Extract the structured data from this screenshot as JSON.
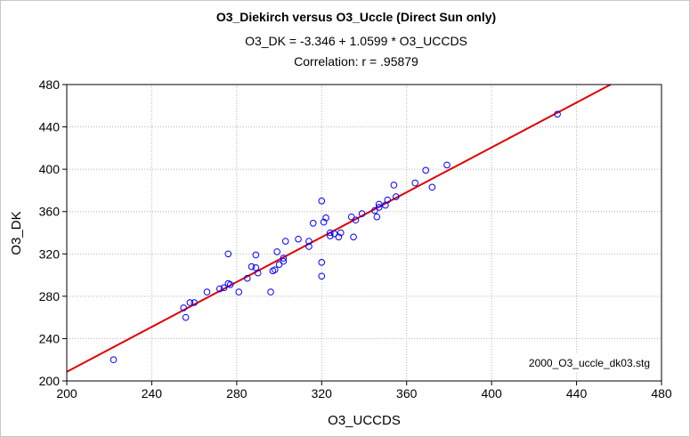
{
  "chart_data": {
    "type": "scatter",
    "title": "O3_Diekirch versus O3_Uccle (Direct Sun only)",
    "subtitle_equation": "O3_DK = -3.346 + 1.0599 * O3_UCCDS",
    "subtitle_correlation": "Correlation: r = .95879",
    "xlabel": "O3_UCCDS",
    "ylabel": "O3_DK",
    "xlim": [
      200,
      480
    ],
    "ylim": [
      200,
      480
    ],
    "xticks": [
      200,
      240,
      280,
      320,
      360,
      400,
      440,
      480
    ],
    "yticks": [
      200,
      240,
      280,
      320,
      360,
      400,
      440,
      480
    ],
    "grid": true,
    "file_note": "2000_O3_uccle_dk03.stg",
    "regression": {
      "intercept": -3.346,
      "slope": 1.0599
    },
    "colors": {
      "points": "#0000ff",
      "line": "#e00000",
      "grid": "#b4b4b4",
      "frame": "#000000"
    },
    "points": [
      [
        222,
        220
      ],
      [
        255,
        269
      ],
      [
        256,
        260
      ],
      [
        258,
        274
      ],
      [
        260,
        274
      ],
      [
        266,
        284
      ],
      [
        272,
        287
      ],
      [
        274,
        288
      ],
      [
        276,
        292
      ],
      [
        276,
        320
      ],
      [
        277,
        291
      ],
      [
        281,
        284
      ],
      [
        285,
        297
      ],
      [
        287,
        308
      ],
      [
        289,
        319
      ],
      [
        289,
        307
      ],
      [
        290,
        302
      ],
      [
        296,
        284
      ],
      [
        297,
        304
      ],
      [
        298,
        305
      ],
      [
        299,
        322
      ],
      [
        300,
        310
      ],
      [
        302,
        313
      ],
      [
        302,
        316
      ],
      [
        303,
        332
      ],
      [
        309,
        334
      ],
      [
        314,
        327
      ],
      [
        314,
        332
      ],
      [
        316,
        349
      ],
      [
        320,
        299
      ],
      [
        320,
        312
      ],
      [
        320,
        370
      ],
      [
        321,
        350
      ],
      [
        322,
        354
      ],
      [
        324,
        337
      ],
      [
        324,
        340
      ],
      [
        326,
        339
      ],
      [
        328,
        336
      ],
      [
        329,
        340
      ],
      [
        334,
        355
      ],
      [
        335,
        336
      ],
      [
        336,
        352
      ],
      [
        339,
        358
      ],
      [
        345,
        361
      ],
      [
        346,
        355
      ],
      [
        347,
        364
      ],
      [
        347,
        367
      ],
      [
        350,
        366
      ],
      [
        351,
        371
      ],
      [
        354,
        385
      ],
      [
        355,
        374
      ],
      [
        364,
        387
      ],
      [
        369,
        399
      ],
      [
        372,
        383
      ],
      [
        379,
        404
      ],
      [
        431,
        452
      ]
    ]
  }
}
